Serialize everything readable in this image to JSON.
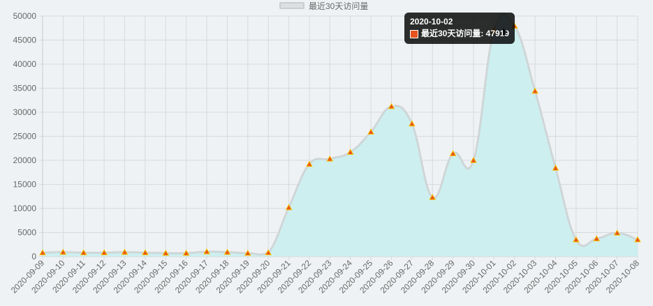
{
  "chart_data": {
    "type": "area",
    "categories": [
      "2020-09-09",
      "2020-09-10",
      "2020-09-11",
      "2020-09-12",
      "2020-09-13",
      "2020-09-14",
      "2020-09-15",
      "2020-09-16",
      "2020-09-17",
      "2020-09-18",
      "2020-09-19",
      "2020-09-20",
      "2020-09-21",
      "2020-09-22",
      "2020-09-23",
      "2020-09-24",
      "2020-09-25",
      "2020-09-26",
      "2020-09-27",
      "2020-09-28",
      "2020-09-29",
      "2020-09-30",
      "2020-10-01",
      "2020-10-02",
      "2020-10-03",
      "2020-10-04",
      "2020-10-05",
      "2020-10-06",
      "2020-10-07",
      "2020-10-08"
    ],
    "series": [
      {
        "name": "最近30天访问量",
        "values": [
          800,
          900,
          800,
          800,
          900,
          800,
          700,
          700,
          1000,
          900,
          700,
          800,
          10200,
          19200,
          20300,
          21700,
          25900,
          31200,
          27600,
          12300,
          21400,
          20000,
          47000,
          47919,
          34400,
          18400,
          3500,
          3700,
          4900,
          3500
        ],
        "line_color": "#cfd6d8",
        "fill_color": "#cdeff0",
        "point_color": "#e8521c",
        "point_edge_color": "#f5c400"
      }
    ],
    "yticks": [
      "0",
      "5000",
      "10000",
      "15000",
      "20000",
      "25000",
      "30000",
      "35000",
      "40000",
      "45000",
      "50000"
    ],
    "ylim": [
      0,
      50000
    ],
    "grid": true,
    "legend_position": "top-center",
    "tooltip": {
      "title": "2020-10-02",
      "label": "最近30天访问量: 47919"
    }
  }
}
